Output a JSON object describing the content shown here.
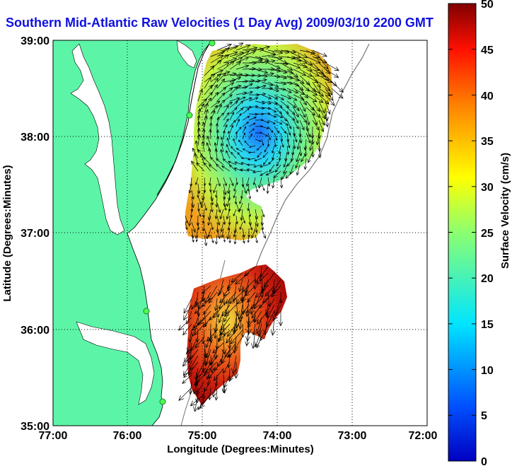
{
  "title": "Southern Mid-Atlantic Raw Velocities (1 Day Avg) 2009/03/10 2200 GMT",
  "map": {
    "xlabel": "Longitude (Degrees:Minutes)",
    "ylabel": "Latitude (Degrees:Minutes)",
    "lon_ticks": [
      "77:00",
      "76:00",
      "75:00",
      "74:00",
      "73:00",
      "72:00"
    ],
    "lat_ticks": [
      "39:00",
      "38:00",
      "37:00",
      "36:00",
      "35:00"
    ],
    "lon_range": [
      -77,
      -72
    ],
    "lat_range": [
      35,
      39
    ],
    "land_color": "#5cf5a8",
    "grid": "dotted"
  },
  "colorbar": {
    "label": "Surface Velocity (cm/s)",
    "ticks": [
      "50",
      "45",
      "40",
      "35",
      "30",
      "25",
      "20",
      "15",
      "10",
      "5",
      "0"
    ],
    "range": [
      0,
      50
    ],
    "colormap": "jet"
  }
}
